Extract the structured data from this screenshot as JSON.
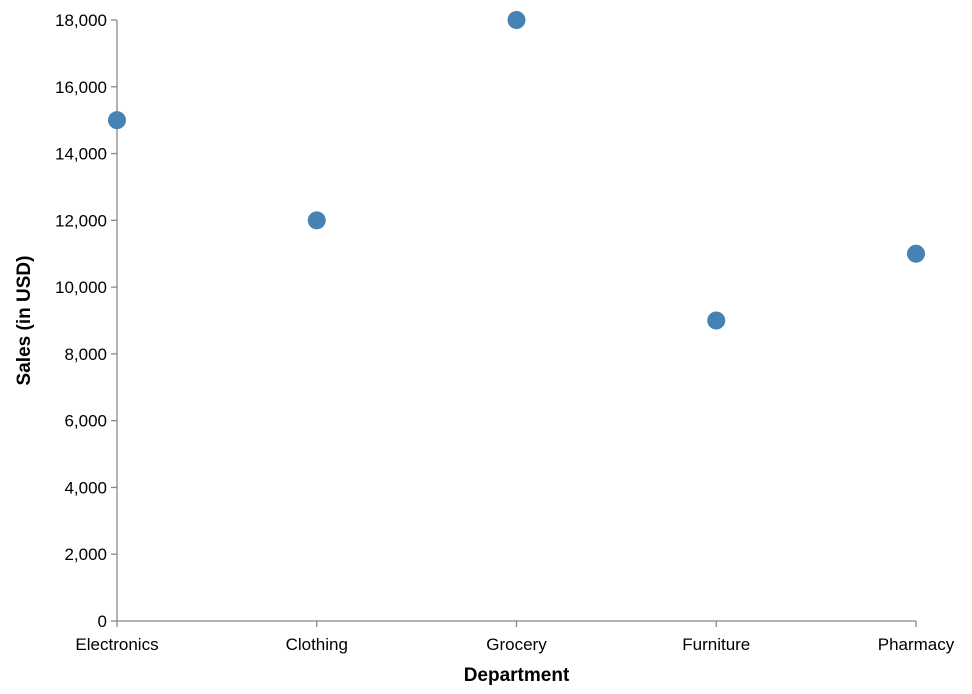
{
  "chart_data": {
    "type": "scatter",
    "categories": [
      "Electronics",
      "Clothing",
      "Grocery",
      "Furniture",
      "Pharmacy"
    ],
    "series": [
      {
        "values": [
          15000,
          12000,
          18000,
          9000,
          11000
        ]
      }
    ],
    "xlabel": "Department",
    "ylabel": "Sales (in USD)",
    "ylim": [
      0,
      18000
    ],
    "yticks": [
      0,
      2000,
      4000,
      6000,
      8000,
      10000,
      12000,
      14000,
      16000,
      18000
    ],
    "ytick_labels": [
      "0",
      "2,000",
      "4,000",
      "6,000",
      "8,000",
      "10,000",
      "12,000",
      "14,000",
      "16,000",
      "18,000"
    ],
    "grid": false,
    "colors": {
      "point": "#4682b4",
      "axis": "#888888",
      "text": "#000000"
    }
  }
}
